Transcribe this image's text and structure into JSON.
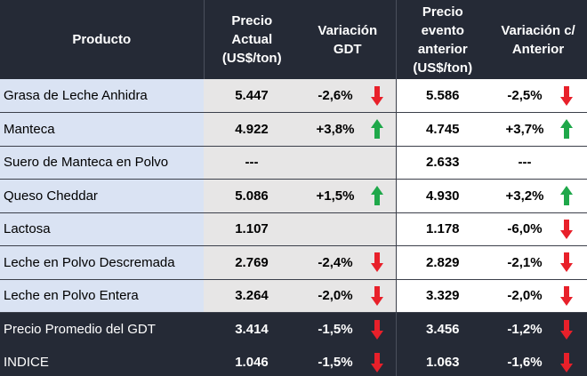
{
  "headers": {
    "producto": "Producto",
    "precio_actual": "Precio\nActual\n(US$/ton)",
    "variacion_gdt": "Variación\nGDT",
    "precio_anterior": "Precio\nevento\nanterior\n(US$/ton)",
    "variacion_anterior": "Variación c/\nAnterior"
  },
  "colors": {
    "header_bg": "#252a36",
    "product_bg": "#dae3f3",
    "current_bg": "#e7e6e6",
    "arrow_down": "#e8202a",
    "arrow_up": "#1fa84a"
  },
  "rows": [
    {
      "producto": "Grasa de Leche Anhidra",
      "precio_actual": "5.447",
      "variacion_gdt": "-2,6%",
      "arrow_gdt": "down-arrow-icon",
      "precio_anterior": "5.586",
      "variacion_anterior": "-2,5%",
      "arrow_ant": "down-arrow-icon",
      "dark": false
    },
    {
      "producto": "Manteca",
      "precio_actual": "4.922",
      "variacion_gdt": "+3,8%",
      "arrow_gdt": "up-arrow-icon",
      "precio_anterior": "4.745",
      "variacion_anterior": "+3,7%",
      "arrow_ant": "up-arrow-icon",
      "dark": false
    },
    {
      "producto": "Suero de Manteca en Polvo",
      "precio_actual": "---",
      "variacion_gdt": "",
      "arrow_gdt": "",
      "precio_anterior": "2.633",
      "variacion_anterior": "---",
      "arrow_ant": "",
      "dark": false
    },
    {
      "producto": "Queso Cheddar",
      "precio_actual": "5.086",
      "variacion_gdt": "+1,5%",
      "arrow_gdt": "up-arrow-icon",
      "precio_anterior": "4.930",
      "variacion_anterior": "+3,2%",
      "arrow_ant": "up-arrow-icon",
      "dark": false
    },
    {
      "producto": "Lactosa",
      "precio_actual": "1.107",
      "variacion_gdt": "",
      "arrow_gdt": "",
      "precio_anterior": "1.178",
      "variacion_anterior": "-6,0%",
      "arrow_ant": "down-arrow-icon",
      "dark": false
    },
    {
      "producto": "Leche en Polvo Descremada",
      "precio_actual": "2.769",
      "variacion_gdt": "-2,4%",
      "arrow_gdt": "down-arrow-icon",
      "precio_anterior": "2.829",
      "variacion_anterior": "-2,1%",
      "arrow_ant": "down-arrow-icon",
      "dark": false
    },
    {
      "producto": "Leche en Polvo Entera",
      "precio_actual": "3.264",
      "variacion_gdt": "-2,0%",
      "arrow_gdt": "down-arrow-icon",
      "precio_anterior": "3.329",
      "variacion_anterior": "-2,0%",
      "arrow_ant": "down-arrow-icon",
      "dark": false
    },
    {
      "producto": "Precio Promedio del GDT",
      "precio_actual": "3.414",
      "variacion_gdt": "-1,5%",
      "arrow_gdt": "down-arrow-icon",
      "precio_anterior": "3.456",
      "variacion_anterior": "-1,2%",
      "arrow_ant": "down-arrow-icon",
      "dark": true
    },
    {
      "producto": "INDICE",
      "precio_actual": "1.046",
      "variacion_gdt": "-1,5%",
      "arrow_gdt": "down-arrow-icon",
      "precio_anterior": "1.063",
      "variacion_anterior": "-1,6%",
      "arrow_ant": "down-arrow-icon",
      "dark": true
    }
  ]
}
